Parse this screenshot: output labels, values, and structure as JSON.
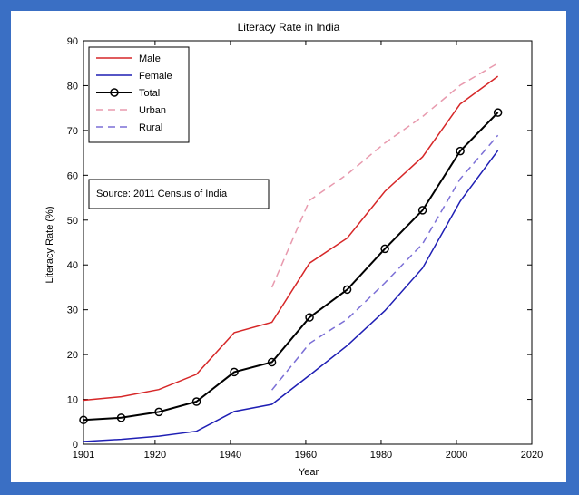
{
  "chart_data": {
    "type": "line",
    "title": "Literacy Rate in India",
    "xlabel": "Year",
    "ylabel": "Literacy Rate (%)",
    "xlim": [
      1901,
      2020
    ],
    "ylim": [
      0,
      90
    ],
    "xticks": [
      1901,
      1920,
      1940,
      1960,
      1980,
      2000,
      2020
    ],
    "xtick_labels": [
      "1901",
      "1920",
      "1940",
      "1960",
      "1980",
      "2000",
      "2020"
    ],
    "yticks": [
      0,
      10,
      20,
      30,
      40,
      50,
      60,
      70,
      80,
      90
    ],
    "ytick_labels": [
      "0",
      "10",
      "20",
      "30",
      "40",
      "50",
      "60",
      "70",
      "80",
      "90"
    ],
    "grid": false,
    "legend_position": "top-left",
    "annotation": "Source: 2011 Census of India",
    "series": [
      {
        "name": "Male",
        "color": "#d62728",
        "style": "solid",
        "marker": "none",
        "x": [
          1901,
          1911,
          1921,
          1931,
          1941,
          1951,
          1961,
          1971,
          1981,
          1991,
          2001,
          2011
        ],
        "values": [
          9.8,
          10.6,
          12.2,
          15.6,
          24.9,
          27.2,
          40.4,
          46.0,
          56.4,
          64.1,
          75.9,
          82.1
        ]
      },
      {
        "name": "Female",
        "color": "#1f1fb4",
        "style": "solid",
        "marker": "none",
        "x": [
          1901,
          1911,
          1921,
          1931,
          1941,
          1951,
          1961,
          1971,
          1981,
          1991,
          2001,
          2011
        ],
        "values": [
          0.6,
          1.1,
          1.8,
          2.9,
          7.3,
          8.9,
          15.4,
          22.0,
          29.8,
          39.3,
          54.2,
          65.5
        ]
      },
      {
        "name": "Total",
        "color": "#000000",
        "style": "solid",
        "marker": "circle",
        "x": [
          1901,
          1911,
          1921,
          1931,
          1941,
          1951,
          1961,
          1971,
          1981,
          1991,
          2001,
          2011
        ],
        "values": [
          5.4,
          5.9,
          7.2,
          9.5,
          16.1,
          18.3,
          28.3,
          34.5,
          43.6,
          52.2,
          65.4,
          74.0
        ]
      },
      {
        "name": "Urban",
        "color": "#e89aae",
        "style": "dashed",
        "marker": "none",
        "x": [
          1951,
          1961,
          1971,
          1981,
          1991,
          2001,
          2011
        ],
        "values": [
          35.0,
          54.4,
          60.2,
          67.2,
          73.1,
          80.1,
          85.0
        ]
      },
      {
        "name": "Rural",
        "color": "#7b6fd6",
        "style": "dashed",
        "marker": "none",
        "x": [
          1951,
          1961,
          1971,
          1981,
          1991,
          2001,
          2011
        ],
        "values": [
          12.1,
          22.5,
          27.9,
          36.0,
          44.7,
          59.2,
          68.9
        ]
      }
    ]
  }
}
